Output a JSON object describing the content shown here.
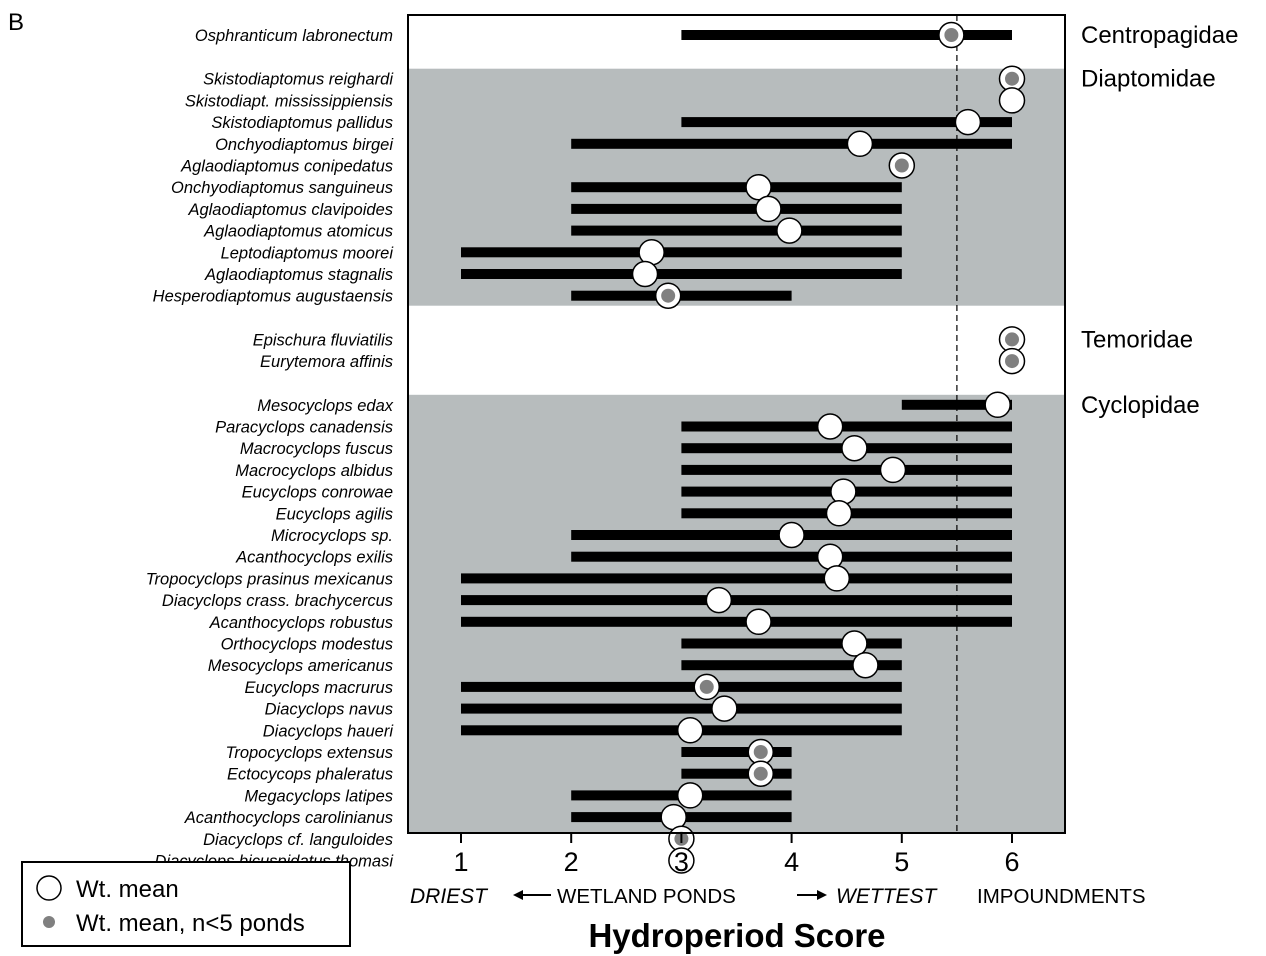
{
  "panel_label": "B",
  "chart_data": {
    "type": "range-dot",
    "xlabel": "Hydroperiod Score",
    "xlim": [
      0.5,
      6.5
    ],
    "x_ticks": [
      1,
      2,
      3,
      4,
      5,
      6
    ],
    "axis_annotation": {
      "driest": "DRIEST",
      "wetland_ponds": "WETLAND PONDS",
      "wettest": "WETTEST",
      "impoundments": "IMPOUNDMENTS"
    },
    "reference_line_x": 5.5,
    "colors": {
      "band": "#b7bcbd",
      "bar": "#000000",
      "small_n_dot": "#808080"
    },
    "legend": {
      "placement": "bottom-left",
      "wt_mean": "Wt. mean",
      "small_n": "Wt. mean, n<5 ponds"
    },
    "groups": [
      {
        "family": "Centropagidae",
        "shaded": false,
        "species": [
          {
            "name": "Osphranticum labronectum",
            "min": 3,
            "max": 6,
            "mean": 5.45,
            "small_n": true
          }
        ]
      },
      {
        "family": "Diaptomidae",
        "shaded": true,
        "species": [
          {
            "name": "Skistodiaptomus reighardi",
            "min": null,
            "max": null,
            "mean": 6.0,
            "small_n": true
          },
          {
            "name": "Skistodiapt. mississippiensis",
            "min": null,
            "max": null,
            "mean": 6.0,
            "small_n": false
          },
          {
            "name": "Skistodiaptomus pallidus",
            "min": 3,
            "max": 6,
            "mean": 5.6,
            "small_n": false
          },
          {
            "name": "Onchyodiaptomus birgei",
            "min": 2,
            "max": 6,
            "mean": 4.62,
            "small_n": false
          },
          {
            "name": "Aglaodiaptomus conipedatus",
            "min": null,
            "max": null,
            "mean": 5.0,
            "small_n": true
          },
          {
            "name": "Onchyodiaptomus sanguineus",
            "min": 2,
            "max": 5,
            "mean": 3.7,
            "small_n": false
          },
          {
            "name": "Aglaodiaptomus clavipoides",
            "min": 2,
            "max": 5,
            "mean": 3.79,
            "small_n": false
          },
          {
            "name": "Aglaodiaptomus atomicus",
            "min": 2,
            "max": 5,
            "mean": 3.98,
            "small_n": false
          },
          {
            "name": "Leptodiaptomus moorei",
            "min": 1,
            "max": 5,
            "mean": 2.73,
            "small_n": false
          },
          {
            "name": "Aglaodiaptomus stagnalis",
            "min": 1,
            "max": 5,
            "mean": 2.67,
            "small_n": false
          },
          {
            "name": "Hesperodiaptomus augustaensis",
            "min": 2,
            "max": 4,
            "mean": 2.88,
            "small_n": true
          }
        ]
      },
      {
        "family": "Temoridae",
        "shaded": false,
        "species": [
          {
            "name": "Epischura fluviatilis",
            "min": null,
            "max": null,
            "mean": 6.0,
            "small_n": true
          },
          {
            "name": "Eurytemora affinis",
            "min": null,
            "max": null,
            "mean": 6.0,
            "small_n": true
          }
        ]
      },
      {
        "family": "Cyclopidae",
        "shaded": true,
        "species": [
          {
            "name": "Mesocyclops edax",
            "min": 5,
            "max": 6,
            "mean": 5.87,
            "small_n": false
          },
          {
            "name": "Paracyclops canadensis",
            "min": 3,
            "max": 6,
            "mean": 4.35,
            "small_n": false
          },
          {
            "name": "Macrocyclops fuscus",
            "min": 3,
            "max": 6,
            "mean": 4.57,
            "small_n": false
          },
          {
            "name": "Macrocyclops albidus",
            "min": 3,
            "max": 6,
            "mean": 4.92,
            "small_n": false
          },
          {
            "name": "Eucyclops conrowae",
            "min": 3,
            "max": 6,
            "mean": 4.47,
            "small_n": false
          },
          {
            "name": "Eucyclops agilis",
            "min": 3,
            "max": 6,
            "mean": 4.43,
            "small_n": false
          },
          {
            "name": "Microcyclops sp.",
            "min": 2,
            "max": 6,
            "mean": 4.0,
            "small_n": false
          },
          {
            "name": "Acanthocyclops exilis",
            "min": 2,
            "max": 6,
            "mean": 4.35,
            "small_n": false
          },
          {
            "name": "Tropocyclops prasinus mexicanus",
            "min": 1,
            "max": 6,
            "mean": 4.41,
            "small_n": false
          },
          {
            "name": "Diacyclops crass. brachycercus",
            "min": 1,
            "max": 6,
            "mean": 3.34,
            "small_n": false
          },
          {
            "name": "Acanthocyclops robustus",
            "min": 1,
            "max": 6,
            "mean": 3.7,
            "small_n": false
          },
          {
            "name": "Orthocyclops modestus",
            "min": 3,
            "max": 5,
            "mean": 4.57,
            "small_n": false
          },
          {
            "name": "Mesocyclops americanus",
            "min": 3,
            "max": 5,
            "mean": 4.67,
            "small_n": false
          },
          {
            "name": "Eucyclops macrurus",
            "min": 1,
            "max": 5,
            "mean": 3.23,
            "small_n": true
          },
          {
            "name": "Diacyclops navus",
            "min": 1,
            "max": 5,
            "mean": 3.39,
            "small_n": false
          },
          {
            "name": "Diacyclops haueri",
            "min": 1,
            "max": 5,
            "mean": 3.08,
            "small_n": false
          },
          {
            "name": "Tropocyclops extensus",
            "min": 3,
            "max": 4,
            "mean": 3.72,
            "small_n": true
          },
          {
            "name": "Ectocycops phaleratus",
            "min": 3,
            "max": 4,
            "mean": 3.72,
            "small_n": true
          },
          {
            "name": "Megacyclops latipes",
            "min": 2,
            "max": 4,
            "mean": 3.08,
            "small_n": false
          },
          {
            "name": "Acanthocyclops carolinianus",
            "min": 2,
            "max": 4,
            "mean": 2.93,
            "small_n": false
          },
          {
            "name": "Diacyclops cf. languloides",
            "min": null,
            "max": null,
            "mean": 3.0,
            "small_n": true
          },
          {
            "name": "Diacyclops bicuspidatus thomasi",
            "min": null,
            "max": null,
            "mean": 3.0,
            "small_n": false
          }
        ]
      }
    ]
  }
}
